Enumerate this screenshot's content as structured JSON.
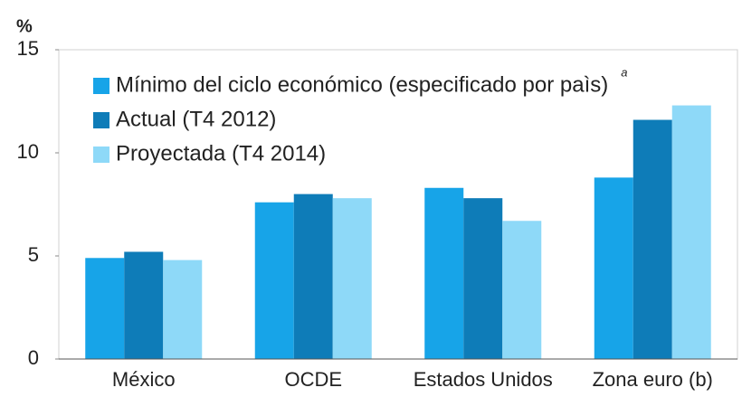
{
  "chart_data": {
    "type": "bar",
    "y_unit": "%",
    "legend_note": "a",
    "categories": [
      "México",
      "OCDE",
      "Estados Unidos",
      "Zona euro (b)"
    ],
    "series": [
      {
        "name": "Mínimo del ciclo económico (especificado por paìs)",
        "color": "#17a4e8",
        "values": [
          4.9,
          7.6,
          8.3,
          8.8
        ]
      },
      {
        "name": "Actual (T4 2012)",
        "color": "#0e7cb8",
        "values": [
          5.2,
          8.0,
          7.8,
          11.6
        ]
      },
      {
        "name": "Proyectada (T4 2014)",
        "color": "#8ed9f8",
        "values": [
          4.8,
          7.8,
          6.7,
          12.3
        ]
      }
    ],
    "ylim": [
      0,
      15
    ],
    "yticks": [
      0,
      5,
      10,
      15
    ],
    "legend": "upper left"
  }
}
